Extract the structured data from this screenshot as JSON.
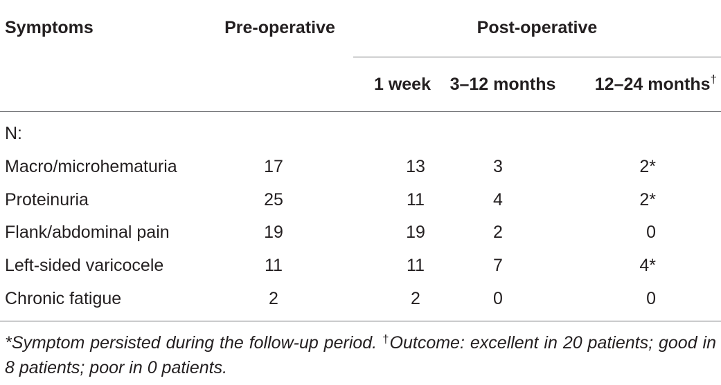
{
  "table": {
    "headers": {
      "symptoms": "Symptoms",
      "preoperative": "Pre-operative",
      "postoperative": "Post-operative",
      "one_week": "1 week",
      "three_twelve_months": "3–12 months",
      "twelve_twentyfour_months": "12–24 months",
      "twelve_twentyfour_marker": "†"
    },
    "group_label": "N:",
    "rows": [
      {
        "symptom": "Macro/microhematuria",
        "pre": "17",
        "week1": "13",
        "m3_12": "3",
        "m12_24": "2*"
      },
      {
        "symptom": "Proteinuria",
        "pre": "25",
        "week1": "11",
        "m3_12": "4",
        "m12_24": "2*"
      },
      {
        "symptom": "Flank/abdominal pain",
        "pre": "19",
        "week1": "19",
        "m3_12": "2",
        "m12_24": "0"
      },
      {
        "symptom": "Left-sided varicocele",
        "pre": "11",
        "week1": "11",
        "m3_12": "7",
        "m12_24": "4*"
      },
      {
        "symptom": "Chronic fatigue",
        "pre": "2",
        "week1": "2",
        "m3_12": "0",
        "m12_24": "0"
      }
    ]
  },
  "footnote": {
    "asterisk_note": "*Symptom persisted during the follow-up period.",
    "dagger_marker": "†",
    "dagger_note": "Outcome: excellent in 20 patients; good in 8 patients; poor in 0 patients."
  }
}
